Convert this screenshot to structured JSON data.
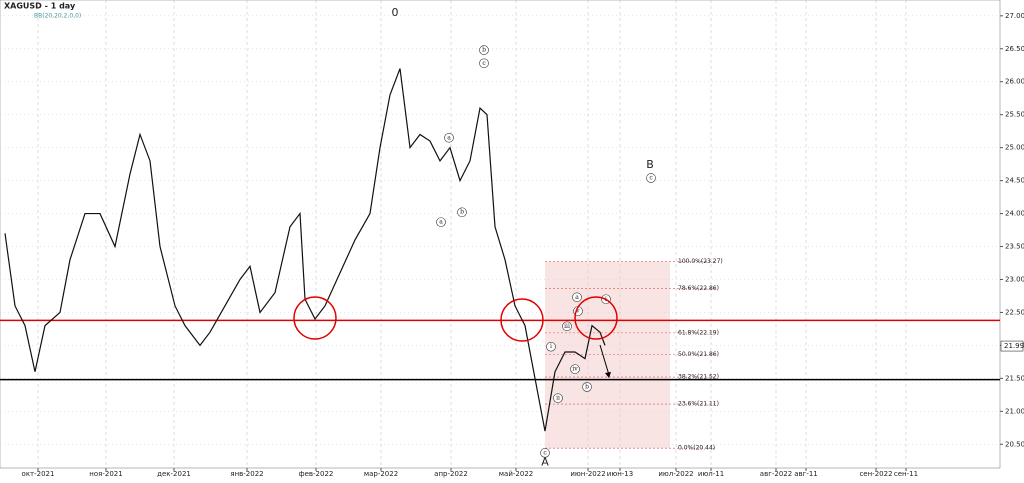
{
  "chart_data": {
    "type": "line",
    "title": "XAGUSD - 1 day",
    "subtitle": "BB(20,20,2,0,0)",
    "color": "#111111",
    "grid": true,
    "xlim": [
      0,
      300
    ],
    "ylim": [
      20.14,
      27.24
    ],
    "xticks": [
      {
        "value": 11.4,
        "label": "окт-2021"
      },
      {
        "value": 31.8,
        "label": "ноя-2021"
      },
      {
        "value": 52.2,
        "label": "дек-2021"
      },
      {
        "value": 74.1,
        "label": "янв-2022"
      },
      {
        "value": 94.8,
        "label": "фев-2022"
      },
      {
        "value": 114.3,
        "label": "мар-2022"
      },
      {
        "value": 135.3,
        "label": "апр-2022"
      },
      {
        "value": 154.8,
        "label": "май-2022"
      },
      {
        "value": 176.4,
        "label": "июн-2022"
      },
      {
        "value": 186,
        "label": "июн-13"
      },
      {
        "value": 202.8,
        "label": "июл-2022"
      },
      {
        "value": 213.3,
        "label": "июл-11"
      },
      {
        "value": 232.8,
        "label": "авг-2022"
      },
      {
        "value": 241.8,
        "label": "авг-11"
      },
      {
        "value": 262.8,
        "label": "сен-2022"
      },
      {
        "value": 271.8,
        "label": "сен-11"
      }
    ],
    "yticks": [
      {
        "value": 20.5,
        "label": "20.50"
      },
      {
        "value": 21,
        "label": "21.00"
      },
      {
        "value": 21.5,
        "label": "21.50"
      },
      {
        "value": 22,
        "label": "22.00"
      },
      {
        "value": 22.5,
        "label": "22.50"
      },
      {
        "value": 23,
        "label": "23.00"
      },
      {
        "value": 23.5,
        "label": "23.50"
      },
      {
        "value": 24,
        "label": "24.00"
      },
      {
        "value": 24.5,
        "label": "24.50"
      },
      {
        "value": 25,
        "label": "25.00"
      },
      {
        "value": 25.5,
        "label": "25.50"
      },
      {
        "value": 26,
        "label": "26.00"
      },
      {
        "value": 26.5,
        "label": "26.50"
      },
      {
        "value": 27,
        "label": "27.00"
      }
    ],
    "x": [
      1.5,
      4.5,
      7.5,
      10.5,
      13.5,
      18,
      21,
      25.5,
      30,
      34.5,
      39,
      42,
      45,
      48,
      52.5,
      55.5,
      60,
      63,
      67.5,
      72,
      75,
      78,
      82.5,
      87,
      90,
      91.5,
      94.5,
      97.5,
      102,
      106.5,
      111,
      114,
      117,
      120,
      123,
      126,
      129,
      132,
      135,
      138,
      141,
      144,
      146.1,
      148.5,
      151.5,
      154.5,
      157.5,
      160.5,
      163.5,
      166.5,
      169.5,
      172.5,
      175.5,
      177.6,
      180,
      181.5
    ],
    "series": [
      {
        "name": "XAGUSD",
        "values": [
          23.7,
          22.6,
          22.3,
          21.6,
          22.3,
          22.5,
          23.3,
          24.0,
          24.0,
          23.5,
          24.6,
          25.2,
          24.8,
          23.5,
          22.6,
          22.3,
          22.0,
          22.2,
          22.6,
          23.0,
          23.2,
          22.5,
          22.8,
          23.8,
          24.0,
          22.7,
          22.4,
          22.6,
          23.1,
          23.6,
          24.0,
          25.0,
          25.8,
          26.2,
          25.0,
          25.2,
          25.1,
          24.8,
          25.0,
          24.5,
          24.8,
          25.6,
          25.5,
          23.8,
          23.3,
          22.6,
          22.3,
          21.5,
          20.7,
          21.6,
          21.9,
          21.9,
          21.8,
          22.3,
          22.2,
          22.0
        ]
      }
    ],
    "hlines": [
      {
        "value": 22.38,
        "color": "#e00000"
      },
      {
        "value": 21.48,
        "color": "#000000"
      }
    ],
    "last_price": {
      "value": 21.99,
      "label": "21.99"
    },
    "fib_levels": [
      {
        "value": 23.27,
        "label": "100.0%(23.27)"
      },
      {
        "value": 22.86,
        "label": "78.6%(22.86)"
      },
      {
        "value": 22.19,
        "label": "61.8%(22.19)"
      },
      {
        "value": 21.86,
        "label": "50.0%(21.86)"
      },
      {
        "value": 21.52,
        "label": "38.2%(21.52)"
      },
      {
        "value": 21.11,
        "label": "23.6%(21.11)"
      },
      {
        "value": 20.44,
        "label": "0.0%(20.44)"
      }
    ],
    "annotations": [
      {
        "text": "0",
        "x": 118.5,
        "y": 27.04,
        "circled": false
      },
      {
        "text": "B",
        "x": 195,
        "y": 24.74,
        "circled": false
      },
      {
        "text": "c",
        "x": 195.3,
        "y": 24.54,
        "circled": true
      },
      {
        "text": "b",
        "x": 145.2,
        "y": 26.48,
        "circled": true
      },
      {
        "text": "c",
        "x": 145.2,
        "y": 26.28,
        "circled": true
      },
      {
        "text": "a",
        "x": 134.7,
        "y": 25.15,
        "circled": true
      },
      {
        "text": "b",
        "x": 138.6,
        "y": 24.02,
        "circled": true
      },
      {
        "text": "a",
        "x": 132.3,
        "y": 23.87,
        "circled": true
      },
      {
        "text": "c",
        "x": 163.5,
        "y": 20.37,
        "circled": true
      },
      {
        "text": "A",
        "x": 163.5,
        "y": 20.22,
        "circled": false
      },
      {
        "text": "i",
        "x": 165.3,
        "y": 21.98,
        "circled": true
      },
      {
        "text": "ii",
        "x": 167.4,
        "y": 21.2,
        "circled": true
      },
      {
        "text": "iii",
        "x": 170.1,
        "y": 22.29,
        "circled": true
      },
      {
        "text": "iv",
        "x": 172.5,
        "y": 21.64,
        "circled": true
      },
      {
        "text": "v",
        "x": 173.4,
        "y": 22.52,
        "circled": true
      },
      {
        "text": "a",
        "x": 173.1,
        "y": 22.73,
        "circled": true
      },
      {
        "text": "b",
        "x": 176.1,
        "y": 21.37,
        "circled": true
      },
      {
        "text": "i",
        "x": 181.8,
        "y": 22.7,
        "circled": true
      }
    ]
  }
}
